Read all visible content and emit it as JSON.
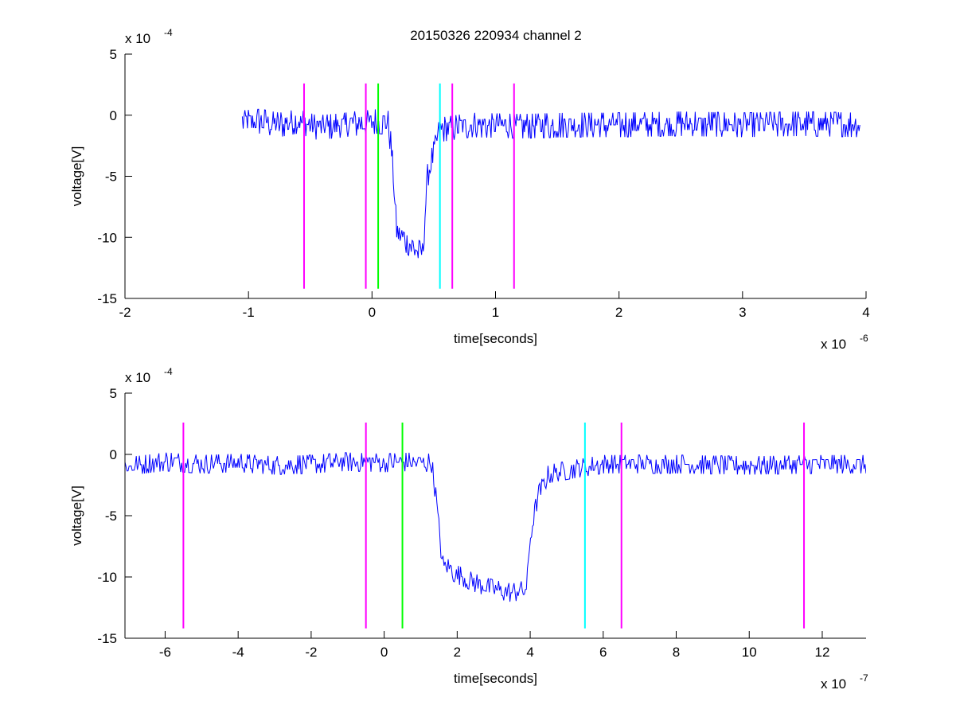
{
  "title": "20150326 220934 channel 2",
  "chart_data": [
    {
      "type": "line",
      "title": "20150326 220934 channel 2",
      "xlabel": "time[seconds]",
      "ylabel": "voltage[V]",
      "x_multiplier_label": "x 10",
      "x_multiplier_exp": "-6",
      "y_multiplier_label": "x 10",
      "y_multiplier_exp": "-4",
      "xlim": [
        -2,
        4
      ],
      "ylim": [
        -15,
        5
      ],
      "xticks": [
        -2,
        -1,
        0,
        1,
        2,
        3,
        4
      ],
      "xtick_labels": [
        "-2",
        "-1",
        "0",
        "1",
        "2",
        "3",
        "4"
      ],
      "yticks": [
        5,
        0,
        -5,
        -10,
        -15
      ],
      "ytick_labels": [
        "5",
        "0",
        "-5",
        "-10",
        "-15"
      ],
      "grid": false,
      "series": [
        {
          "color": "#0000ff",
          "x": [
            -1.05,
            -0.9,
            -0.75,
            -0.6,
            -0.45,
            -0.3,
            -0.15,
            -0.05,
            0.05,
            0.13,
            0.16,
            0.2,
            0.3,
            0.35,
            0.41,
            0.45,
            0.55,
            0.8,
            1.2,
            1.6,
            2.0,
            2.5,
            3.0,
            3.5,
            3.95
          ],
          "y": [
            -0.6,
            -0.5,
            -0.8,
            -0.5,
            -1.0,
            -0.9,
            -0.7,
            -0.6,
            -0.5,
            -0.6,
            -3.0,
            -9.5,
            -10.5,
            -11.0,
            -11.5,
            -5.0,
            -1.2,
            -0.8,
            -0.9,
            -0.8,
            -0.8,
            -0.7,
            -0.8,
            -0.7,
            -0.8
          ],
          "noise": 1.0
        }
      ],
      "vlines": [
        {
          "x": -0.55,
          "color": "#ff00ff"
        },
        {
          "x": -0.05,
          "color": "#ff00ff"
        },
        {
          "x": 0.05,
          "color": "#00ff00"
        },
        {
          "x": 0.55,
          "color": "#00ffff"
        },
        {
          "x": 0.65,
          "color": "#ff00ff"
        },
        {
          "x": 1.15,
          "color": "#ff00ff"
        }
      ],
      "vline_range": [
        -14.2,
        2.6
      ]
    },
    {
      "type": "line",
      "title": "",
      "xlabel": "time[seconds]",
      "ylabel": "voltage[V]",
      "x_multiplier_label": "x 10",
      "x_multiplier_exp": "-7",
      "y_multiplier_label": "x 10",
      "y_multiplier_exp": "-4",
      "xlim": [
        -7.1,
        13.2
      ],
      "ylim": [
        -15,
        5
      ],
      "xticks": [
        -6,
        -4,
        -2,
        0,
        2,
        4,
        6,
        8,
        10,
        12
      ],
      "xtick_labels": [
        "-6",
        "-4",
        "-2",
        "0",
        "2",
        "4",
        "6",
        "8",
        "10",
        "12"
      ],
      "yticks": [
        5,
        0,
        -5,
        -10,
        -15
      ],
      "ytick_labels": [
        "5",
        "0",
        "-5",
        "-10",
        "-15"
      ],
      "grid": false,
      "series": [
        {
          "color": "#0000ff",
          "x": [
            -7.1,
            -6.0,
            -5.0,
            -4.0,
            -3.0,
            -2.0,
            -1.0,
            0.0,
            0.8,
            1.3,
            1.4,
            1.6,
            2.0,
            2.5,
            3.0,
            3.5,
            3.9,
            4.0,
            4.2,
            4.5,
            5.0,
            6.0,
            8.0,
            10.0,
            12.0,
            13.2
          ],
          "y": [
            -1.0,
            -0.6,
            -0.8,
            -0.7,
            -0.9,
            -0.8,
            -0.6,
            -0.7,
            -0.6,
            -0.7,
            -3.0,
            -9.0,
            -9.8,
            -10.5,
            -11.0,
            -11.3,
            -11.0,
            -7.0,
            -3.5,
            -1.6,
            -1.3,
            -0.8,
            -0.8,
            -0.9,
            -0.8,
            -0.8
          ],
          "noise": 0.75
        }
      ],
      "vlines": [
        {
          "x": -5.5,
          "color": "#ff00ff"
        },
        {
          "x": -0.5,
          "color": "#ff00ff"
        },
        {
          "x": 0.5,
          "color": "#00ff00"
        },
        {
          "x": 5.5,
          "color": "#00ffff"
        },
        {
          "x": 6.5,
          "color": "#ff00ff"
        },
        {
          "x": 11.5,
          "color": "#ff00ff"
        }
      ],
      "vline_range": [
        -14.2,
        2.6
      ]
    }
  ]
}
